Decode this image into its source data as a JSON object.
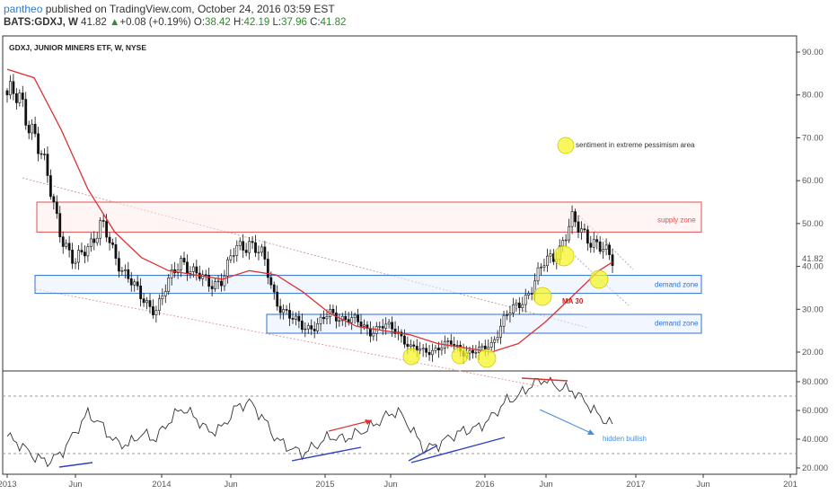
{
  "header": {
    "user": "pantheo",
    "published_text": "published on TradingView.com, October 24, 2016 03:59 EST",
    "symbol": "BATS:GDXJ, W",
    "last": "41.82",
    "change": "+0.08 (+0.19%)",
    "o_label": "O:",
    "o_val": "38.42",
    "h_label": "H:",
    "h_val": "42.19",
    "l_label": "L:",
    "l_val": "37.96",
    "c_label": "C:",
    "c_val": "41.82"
  },
  "colors": {
    "up": "#2e8b2e",
    "ma": "#e03030",
    "supply": "#e05050",
    "demand": "#3070d0",
    "marker": "#f0f020",
    "osc": "#333333",
    "blue_line": "#3040c0",
    "red_arrow": "#e03030"
  },
  "chart_data": [
    {
      "type": "candlestick",
      "title": "GDXJ, JUNIOR MINERS ETF, W, NYSE",
      "ylim": [
        15,
        93
      ],
      "y_ticks": [
        "90.00",
        "80.00",
        "70.00",
        "60.00",
        "50.00",
        "40.00",
        "30.00",
        "20.00"
      ],
      "last_price_label": "41.82",
      "x_tick_labels": [
        "2013",
        "Jun",
        "2014",
        "Jun",
        "2015",
        "Jun",
        "2016",
        "Jun",
        "2017",
        "Jun",
        "201"
      ],
      "series": [
        {
          "name": "price_close_approx",
          "x": [
            "2013-01",
            "2013-02",
            "2013-03",
            "2013-04",
            "2013-05",
            "2013-06",
            "2013-07",
            "2013-08",
            "2013-09",
            "2013-10",
            "2013-11",
            "2013-12",
            "2014-01",
            "2014-02",
            "2014-03",
            "2014-04",
            "2014-05",
            "2014-06",
            "2014-07",
            "2014-08",
            "2014-09",
            "2014-10",
            "2014-11",
            "2014-12",
            "2015-01",
            "2015-02",
            "2015-03",
            "2015-04",
            "2015-05",
            "2015-06",
            "2015-07",
            "2015-08",
            "2015-09",
            "2015-10",
            "2015-11",
            "2015-12",
            "2016-01",
            "2016-02",
            "2016-03",
            "2016-04",
            "2016-05",
            "2016-06",
            "2016-07",
            "2016-08",
            "2016-09",
            "2016-10"
          ],
          "values": [
            80,
            78,
            72,
            60,
            48,
            40,
            45,
            50,
            42,
            38,
            32,
            30,
            36,
            42,
            38,
            36,
            37,
            44,
            46,
            42,
            32,
            28,
            26,
            26,
            29,
            28,
            27,
            25,
            26,
            25,
            21,
            20,
            21,
            22,
            20,
            20,
            22,
            28,
            31,
            35,
            41,
            44,
            50,
            48,
            44,
            41.82
          ]
        },
        {
          "name": "MA 30",
          "x": [
            "2013-01",
            "2013-03",
            "2013-05",
            "2013-07",
            "2013-09",
            "2013-11",
            "2014-01",
            "2014-03",
            "2014-05",
            "2014-07",
            "2014-09",
            "2014-11",
            "2015-01",
            "2015-03",
            "2015-05",
            "2015-07",
            "2015-09",
            "2015-11",
            "2016-01",
            "2016-03",
            "2016-05",
            "2016-07",
            "2016-09",
            "2016-10"
          ],
          "values": [
            86,
            84,
            72,
            58,
            48,
            42,
            39,
            38,
            37,
            39,
            38,
            34,
            29,
            26,
            25,
            24,
            22,
            21,
            20,
            22,
            27,
            33,
            39,
            41
          ]
        }
      ],
      "annotations": {
        "sentiment": "sentiment in extreme pessimism area",
        "supply_zone": "supply zone",
        "demand_zone_1": "demand zone",
        "demand_zone_2": "demand zone",
        "ma_label": "MA 30"
      }
    },
    {
      "type": "line",
      "ylim": [
        18,
        84
      ],
      "y_ticks": [
        "80.000",
        "60.000",
        "40.000",
        "20.000"
      ],
      "reference_levels": [
        70,
        30
      ],
      "series": [
        {
          "name": "oscillator",
          "x": [
            "2013-01",
            "2013-02",
            "2013-03",
            "2013-04",
            "2013-05",
            "2013-06",
            "2013-07",
            "2013-08",
            "2013-09",
            "2013-10",
            "2013-11",
            "2013-12",
            "2014-01",
            "2014-02",
            "2014-03",
            "2014-04",
            "2014-05",
            "2014-06",
            "2014-07",
            "2014-08",
            "2014-09",
            "2014-10",
            "2014-11",
            "2014-12",
            "2015-01",
            "2015-02",
            "2015-03",
            "2015-04",
            "2015-05",
            "2015-06",
            "2015-07",
            "2015-08",
            "2015-09",
            "2015-10",
            "2015-11",
            "2015-12",
            "2016-01",
            "2016-02",
            "2016-03",
            "2016-04",
            "2016-05",
            "2016-06",
            "2016-07",
            "2016-08",
            "2016-09",
            "2016-10"
          ],
          "values": [
            42,
            36,
            28,
            24,
            30,
            44,
            58,
            50,
            38,
            36,
            44,
            40,
            52,
            62,
            55,
            45,
            48,
            62,
            66,
            55,
            40,
            34,
            30,
            36,
            42,
            40,
            44,
            48,
            55,
            60,
            48,
            33,
            36,
            42,
            46,
            48,
            55,
            66,
            70,
            78,
            82,
            76,
            74,
            66,
            56,
            50
          ]
        }
      ],
      "annotations": {
        "hidden_bullish": "hidden bullish"
      }
    }
  ]
}
